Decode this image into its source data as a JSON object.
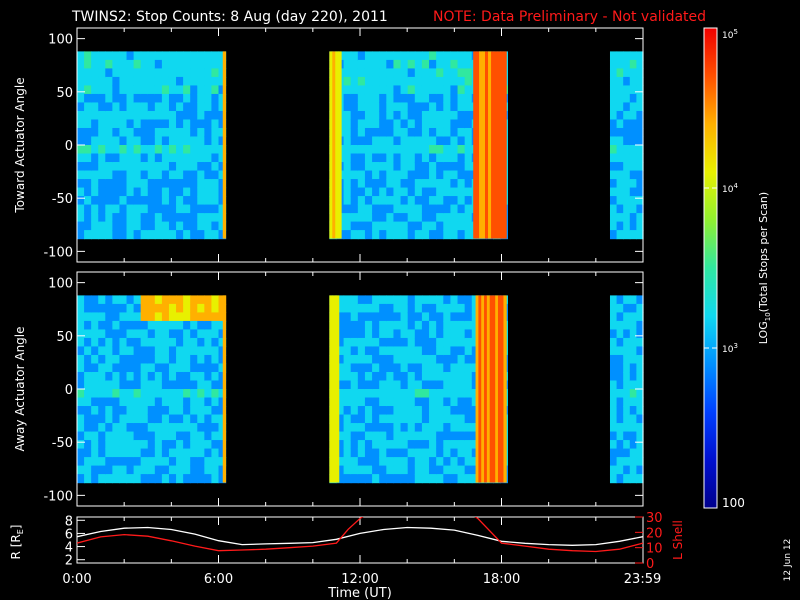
{
  "header": {
    "title": "TWINS2: Stop Counts:  8 Aug (day 220), 2011",
    "note": "NOTE: Data Preliminary - Not validated"
  },
  "colorbar": {
    "label": "LOG10(Total Stops per Scan)",
    "label_prefix": "LOG",
    "label_sub": "10",
    "label_suffix": "(Total Stops per Scan)",
    "scale": "log",
    "range": [
      100,
      100000
    ],
    "ticks": [
      {
        "base": "10",
        "exp": "5",
        "value": 100000
      },
      {
        "base": "10",
        "exp": "4",
        "value": 10000
      },
      {
        "base": "10",
        "exp": "3",
        "value": 1000
      }
    ],
    "bottom_label": "100",
    "colors": [
      "#00008c",
      "#0010d0",
      "#0040ff",
      "#0090ff",
      "#10d8f0",
      "#30e8a0",
      "#90f030",
      "#e8f000",
      "#ffb000",
      "#ff5000",
      "#f00000"
    ]
  },
  "side_date": "12 Jun 12",
  "chart_data": [
    {
      "type": "heatmap",
      "name": "toward",
      "ylabel": "Toward Actuator Angle",
      "ylim": [
        -110,
        110
      ],
      "yticks": [
        100,
        50,
        0,
        -50,
        -100
      ],
      "data_angle_range": [
        -88,
        88
      ],
      "xlim": [
        0,
        24
      ],
      "segments": [
        {
          "start": 0.0,
          "end": 6.3
        },
        {
          "start": 10.7,
          "end": 18.25
        },
        {
          "start": 22.6,
          "end": 24.0
        }
      ],
      "hot_bands": [
        {
          "start": 6.18,
          "end": 6.3,
          "level": 0.82
        },
        {
          "start": 10.7,
          "end": 11.2,
          "level": 0.72
        },
        {
          "start": 16.8,
          "end": 17.3,
          "level": 0.8
        },
        {
          "start": 17.3,
          "end": 18.2,
          "level": 0.9
        }
      ]
    },
    {
      "type": "heatmap",
      "name": "away",
      "ylabel": "Away Actuator Angle",
      "ylim": [
        -110,
        110
      ],
      "yticks": [
        100,
        50,
        0,
        -50,
        -100
      ],
      "data_angle_range": [
        -88,
        88
      ],
      "xlim": [
        0,
        24
      ],
      "segments": [
        {
          "start": 0.0,
          "end": 6.3
        },
        {
          "start": 10.7,
          "end": 18.25
        },
        {
          "start": 22.6,
          "end": 24.0
        }
      ],
      "hot_bands": [
        {
          "start": 6.18,
          "end": 6.3,
          "level": 0.82
        },
        {
          "start": 10.7,
          "end": 11.1,
          "level": 0.7
        },
        {
          "start": 16.9,
          "end": 17.5,
          "level": 0.82
        },
        {
          "start": 17.5,
          "end": 18.2,
          "level": 0.88
        }
      ]
    },
    {
      "type": "line",
      "name": "orbit",
      "ylabel": "R [RE]",
      "ylabel_text": "R [R",
      "ylabel_sub": "E",
      "ylabel_close": "]",
      "ylim": [
        1.5,
        8.5
      ],
      "yticks": [
        8,
        6,
        4,
        2
      ],
      "y2label": "L Shell",
      "y2lim": [
        0,
        30
      ],
      "y2ticks": [
        30,
        20,
        10,
        0
      ],
      "xlabel": "Time (UT)",
      "xlim": [
        0,
        24
      ],
      "xticks": [
        {
          "value": 0,
          "label": "0:00"
        },
        {
          "value": 6,
          "label": "6:00"
        },
        {
          "value": 12,
          "label": "12:00"
        },
        {
          "value": 18,
          "label": "18:00"
        },
        {
          "value": 23.98,
          "label": "23:59"
        }
      ],
      "series": [
        {
          "name": "R",
          "axis": "left",
          "color": "#ffffff",
          "x": [
            0,
            1,
            2,
            3,
            4,
            5,
            6,
            7,
            8,
            9,
            10,
            11,
            12,
            13,
            14,
            15,
            16,
            17,
            18,
            19,
            20,
            21,
            22,
            23,
            24
          ],
          "y": [
            5.5,
            6.3,
            6.8,
            6.9,
            6.6,
            5.9,
            4.9,
            4.3,
            4.4,
            4.5,
            4.6,
            5.1,
            6.0,
            6.6,
            6.9,
            6.8,
            6.5,
            5.7,
            4.8,
            4.5,
            4.3,
            4.2,
            4.3,
            4.8,
            5.5
          ]
        },
        {
          "name": "L Shell",
          "axis": "right",
          "color": "#ff1a1a",
          "x": [
            0,
            1,
            2,
            3,
            4,
            5,
            6,
            7,
            8,
            9,
            10,
            11,
            11.5,
            12,
            12.2,
            16.8,
            17,
            18,
            19,
            20,
            21,
            22,
            23,
            24
          ],
          "y": [
            13,
            17,
            18.5,
            17.5,
            14.5,
            11,
            8,
            8.5,
            9,
            10,
            11,
            13,
            22,
            29,
            31,
            31,
            29,
            13,
            11,
            9,
            8,
            7.5,
            9,
            13
          ]
        }
      ]
    }
  ]
}
